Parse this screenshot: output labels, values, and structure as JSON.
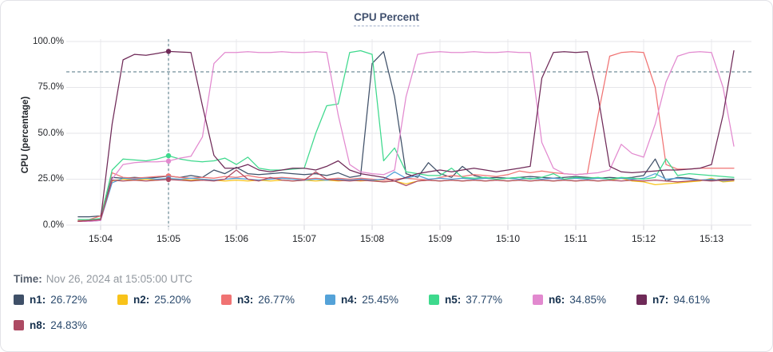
{
  "time_row": {
    "label": "Time:",
    "value": "Nov 26, 2024 at 15:05:00 UTC"
  },
  "legend": {
    "items": [
      {
        "label": "n1:",
        "value": "26.72%"
      },
      {
        "label": "n2:",
        "value": "25.20%"
      },
      {
        "label": "n3:",
        "value": "26.77%"
      },
      {
        "label": "n4:",
        "value": "25.45%"
      },
      {
        "label": "n5:",
        "value": "37.77%"
      },
      {
        "label": "n6:",
        "value": "34.85%"
      },
      {
        "label": "n7:",
        "value": "94.61%"
      },
      {
        "label": "n8:",
        "value": "24.83%"
      }
    ]
  },
  "chart_data": {
    "type": "line",
    "title": "CPU Percent",
    "ylabel": "CPU (percentage)",
    "ylim": [
      0,
      100
    ],
    "grid": true,
    "legend_position": "bottom",
    "x_unit": "minutes after 15:00 UTC",
    "threshold_line": 83.5,
    "crosshair_time": 5,
    "yticks": [
      {
        "v": 0,
        "label": "0.0%"
      },
      {
        "v": 25,
        "label": "25.0%"
      },
      {
        "v": 50,
        "label": "50.0%"
      },
      {
        "v": 75,
        "label": "75.0%"
      },
      {
        "v": 100,
        "label": "100.0%"
      }
    ],
    "xticks": [
      {
        "t": 4,
        "label": "15:04"
      },
      {
        "t": 5,
        "label": "15:05"
      },
      {
        "t": 6,
        "label": "15:06"
      },
      {
        "t": 7,
        "label": "15:07"
      },
      {
        "t": 8,
        "label": "15:08"
      },
      {
        "t": 9,
        "label": "15:09"
      },
      {
        "t": 10,
        "label": "15:10"
      },
      {
        "t": 11,
        "label": "15:11"
      },
      {
        "t": 12,
        "label": "15:12"
      },
      {
        "t": 13,
        "label": "15:13"
      }
    ],
    "x": [
      3.67,
      3.83,
      4,
      4.17,
      4.33,
      4.5,
      4.67,
      4.83,
      5,
      5.17,
      5.33,
      5.5,
      5.67,
      5.83,
      6,
      6.17,
      6.33,
      6.5,
      6.67,
      6.83,
      7,
      7.17,
      7.33,
      7.5,
      7.67,
      7.83,
      8,
      8.17,
      8.33,
      8.5,
      8.67,
      8.83,
      9,
      9.17,
      9.33,
      9.5,
      9.67,
      9.83,
      10,
      10.17,
      10.33,
      10.5,
      10.67,
      10.83,
      11,
      11.17,
      11.33,
      11.5,
      11.67,
      11.83,
      12,
      12.17,
      12.33,
      12.5,
      12.67,
      12.83,
      13,
      13.17,
      13.33
    ],
    "series": [
      {
        "name": "n1",
        "color": "#3f5068",
        "crosshair_value": 26.72,
        "values": [
          4.5,
          4.5,
          5,
          26,
          25.5,
          26,
          25.5,
          26,
          26.7,
          26,
          27,
          26,
          30,
          28,
          31.5,
          28,
          27.5,
          28,
          28.5,
          28,
          27.5,
          28,
          27,
          28.5,
          26,
          27,
          88,
          94.5,
          70,
          28,
          26,
          34,
          28,
          26,
          32,
          27,
          25.5,
          26,
          25.5,
          26,
          26.5,
          26,
          25.5,
          26,
          26.5,
          26,
          25.5,
          26,
          25.5,
          26,
          27,
          36,
          24,
          26,
          25.5,
          24.5,
          24.5,
          25,
          25
        ]
      },
      {
        "name": "n2",
        "color": "#f8c31a",
        "crosshair_value": 25.2,
        "values": [
          2.5,
          2.5,
          3,
          24,
          25,
          24.5,
          25,
          24.5,
          25.2,
          25,
          24.5,
          25,
          24.5,
          24,
          24.5,
          24,
          24.5,
          24,
          24.5,
          24,
          24.5,
          24,
          24.5,
          24,
          24.5,
          24,
          24.5,
          23.5,
          24,
          22.5,
          24,
          24.5,
          24,
          24.5,
          24,
          24.5,
          24,
          24.5,
          24,
          24.5,
          24,
          24.5,
          24,
          24.5,
          24,
          24.5,
          24,
          24.5,
          25.5,
          24,
          23.5,
          22,
          22.5,
          23,
          23.5,
          24,
          25.5,
          23.5,
          24
        ]
      },
      {
        "name": "n3",
        "color": "#f07373",
        "crosshair_value": 26.77,
        "values": [
          2.5,
          3,
          5,
          28.5,
          26,
          25.5,
          26,
          26.5,
          26.8,
          26,
          25.5,
          26,
          25.5,
          26.5,
          26,
          27,
          26,
          25.5,
          26,
          25.5,
          25,
          25.5,
          25,
          25.5,
          25,
          25.5,
          25,
          24.5,
          25,
          25.5,
          25,
          24.5,
          26,
          27,
          26.5,
          27.5,
          27,
          26.5,
          27.5,
          29.5,
          28.5,
          29.5,
          28.5,
          28,
          27.5,
          28,
          60,
          92,
          94,
          94.5,
          94,
          75,
          33,
          30.5,
          30.5,
          31,
          31,
          31,
          31
        ]
      },
      {
        "name": "n4",
        "color": "#54a2d8",
        "crosshair_value": 25.45,
        "values": [
          2,
          2,
          2.5,
          23,
          25.5,
          25,
          25.5,
          25,
          25.45,
          25,
          25.5,
          25,
          24.5,
          25,
          25.5,
          25,
          24.5,
          25,
          25.5,
          25,
          24.5,
          25,
          24.5,
          25,
          24.5,
          25,
          24.5,
          25,
          29,
          25.5,
          27,
          25,
          25.5,
          25,
          25.5,
          25,
          25.5,
          25,
          25.5,
          25,
          25.5,
          25,
          25.5,
          25,
          25.5,
          25,
          25.5,
          25,
          25.5,
          25,
          25.5,
          28,
          25,
          25.5,
          25,
          24.5,
          25,
          24,
          24.5
        ]
      },
      {
        "name": "n5",
        "color": "#3ed98d",
        "crosshair_value": 37.77,
        "values": [
          3,
          3,
          3.5,
          30,
          36,
          35.5,
          35,
          36,
          37.8,
          36,
          35,
          34.5,
          35,
          36.5,
          33,
          37,
          31,
          30,
          30,
          30.5,
          31,
          50,
          65,
          66,
          94,
          95,
          93,
          35,
          42,
          29,
          28,
          27,
          27,
          31,
          26,
          25.5,
          26,
          25,
          25.5,
          26,
          25,
          26,
          28,
          25,
          26,
          25.5,
          26,
          25,
          26,
          25.5,
          25,
          26,
          36,
          27,
          28,
          27.5,
          27,
          26.5,
          26
        ]
      },
      {
        "name": "n6",
        "color": "#e289cf",
        "crosshair_value": 34.85,
        "values": [
          2,
          2,
          2.5,
          25,
          33,
          34,
          34.5,
          34.5,
          34.9,
          36.5,
          37.5,
          48,
          88,
          94,
          94,
          94.5,
          94,
          94,
          94.5,
          94,
          94,
          94.5,
          94,
          60,
          33,
          29,
          28,
          27.5,
          30,
          70,
          93,
          94,
          94.5,
          94,
          94,
          94.5,
          94,
          94,
          94.5,
          94,
          94,
          45,
          31,
          28,
          27.5,
          28,
          28.5,
          30,
          44,
          39,
          37,
          55,
          78,
          92,
          94,
          94.5,
          94,
          75,
          43
        ]
      },
      {
        "name": "n7",
        "color": "#6f2a58",
        "crosshair_value": 94.61,
        "values": [
          2,
          2.5,
          3,
          55,
          90,
          93,
          92.5,
          93.5,
          94.6,
          94.3,
          94,
          65,
          38,
          31,
          31,
          33,
          30,
          29,
          30,
          31,
          31,
          30,
          32,
          35,
          30,
          28,
          27,
          26,
          24,
          26,
          28,
          29,
          30,
          29,
          30,
          31,
          30,
          29,
          30,
          31,
          32,
          80,
          94,
          94.5,
          94,
          94.5,
          70,
          32,
          29,
          28.5,
          29,
          29.5,
          30,
          30,
          30.5,
          31,
          33,
          60,
          95
        ]
      },
      {
        "name": "n8",
        "color": "#ad4a63",
        "crosshair_value": 24.83,
        "values": [
          2,
          2.5,
          3,
          24.5,
          24,
          24.5,
          24,
          24.5,
          24.8,
          24.5,
          24,
          24.5,
          24,
          25,
          30,
          25,
          24,
          26,
          24.5,
          24,
          24.5,
          29,
          25,
          24.5,
          24,
          24.5,
          24,
          23.5,
          24,
          21.5,
          24,
          24.5,
          24,
          24.5,
          24,
          24.5,
          24,
          24.5,
          24,
          24.5,
          24,
          24.5,
          24,
          24.5,
          24,
          24.5,
          24,
          24.5,
          24,
          24.5,
          24,
          24.5,
          24,
          23.5,
          24,
          24.5,
          24,
          24.5,
          24.5
        ]
      }
    ]
  }
}
